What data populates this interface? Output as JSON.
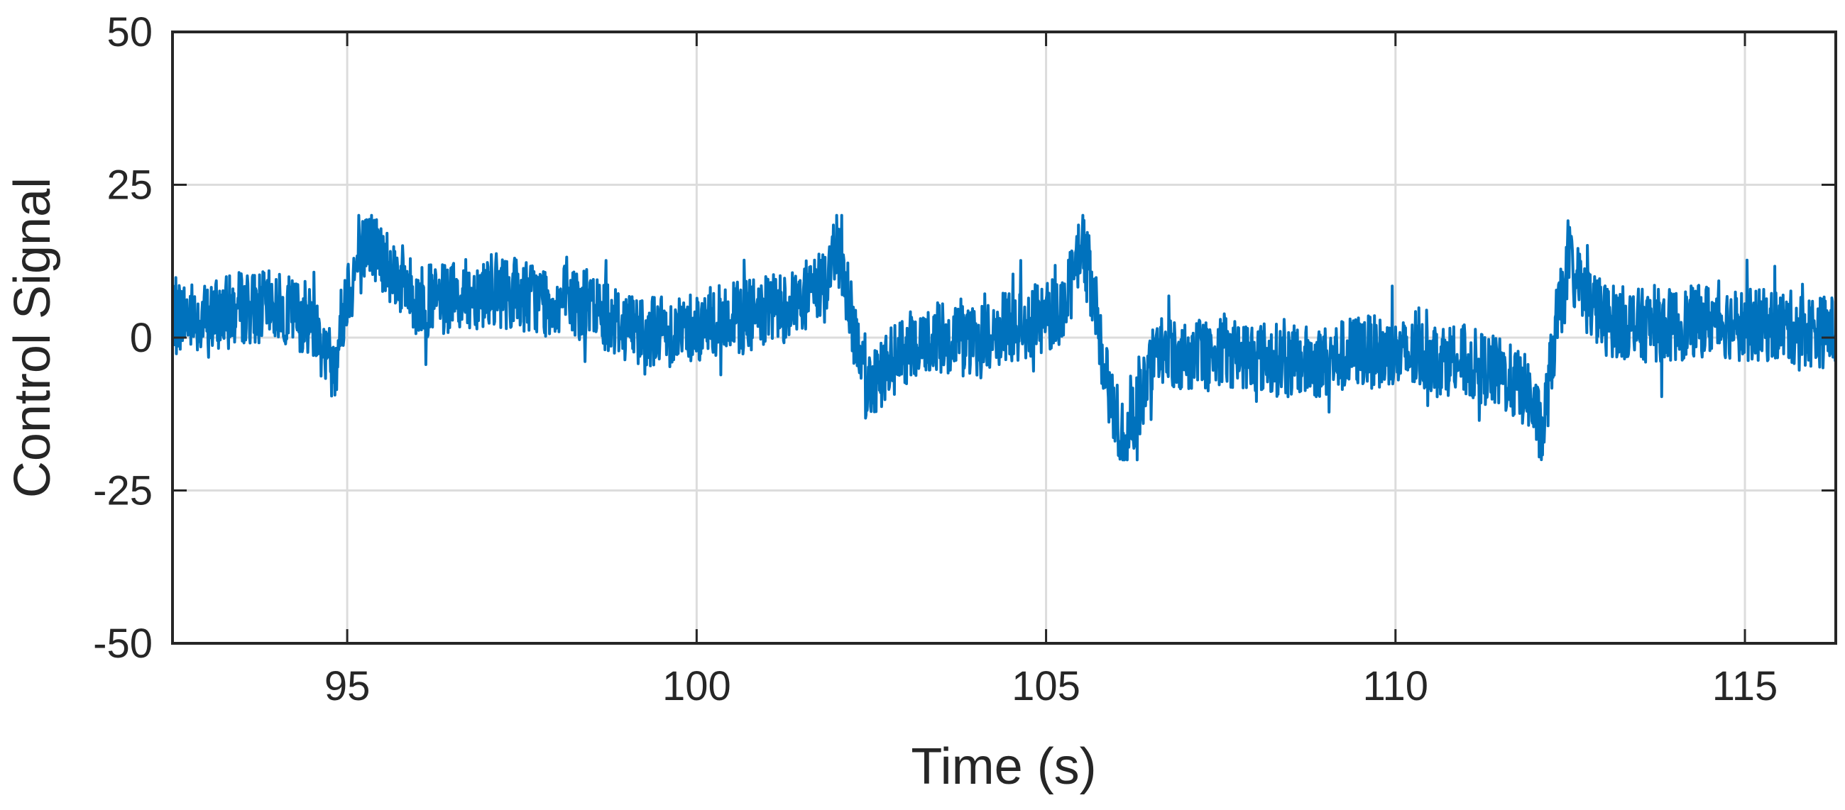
{
  "chart_data": {
    "type": "line",
    "title": "",
    "xlabel": "Time (s)",
    "ylabel": "Control Signal",
    "xlim": [
      92.5,
      116.3
    ],
    "ylim": [
      -50,
      50
    ],
    "xticks": [
      95,
      100,
      105,
      110,
      115
    ],
    "yticks": [
      -50,
      -25,
      0,
      25,
      50
    ],
    "xtick_labels": [
      "95",
      "100",
      "105",
      "110",
      "115"
    ],
    "ytick_labels": [
      "-50",
      "-25",
      "0",
      "25",
      "50"
    ],
    "grid": true,
    "legend": "none",
    "colors": {
      "series": "#0072BD",
      "grid": "#DCDCDC",
      "axis": "#262626"
    },
    "series": [
      {
        "x": [
          92.5,
          93.0,
          93.5,
          94.0,
          94.5,
          94.8,
          95.0,
          95.3,
          95.6,
          96.0,
          96.5,
          97.0,
          97.5,
          98.0,
          98.5,
          99.0,
          99.5,
          100.0,
          100.5,
          101.0,
          101.5,
          101.9,
          102.0,
          102.2,
          102.4,
          102.6,
          103.0,
          103.5,
          104.0,
          104.5,
          105.0,
          105.3,
          105.5,
          105.7,
          105.9,
          106.1,
          106.3,
          106.6,
          107.0,
          107.5,
          108.0,
          108.5,
          109.0,
          109.5,
          110.0,
          110.5,
          111.0,
          111.5,
          111.9,
          112.1,
          112.3,
          112.5,
          112.7,
          113.0,
          113.5,
          114.0,
          114.5,
          115.0,
          115.5,
          116.0,
          116.3
        ],
        "y": [
          4,
          3,
          5,
          5,
          3,
          -5,
          8,
          16,
          12,
          6,
          6,
          8,
          7,
          6,
          5,
          2,
          1,
          2,
          3,
          4,
          6,
          10,
          16,
          5,
          -8,
          -6,
          -2,
          0,
          -1,
          2,
          3,
          6,
          16,
          6,
          -10,
          -16,
          -12,
          -2,
          -3,
          -2,
          -3,
          -4,
          -4,
          -2,
          -3,
          -3,
          -4,
          -6,
          -9,
          -16,
          2,
          12,
          7,
          3,
          2,
          2,
          3,
          2,
          2,
          1,
          1
        ]
      }
    ]
  }
}
